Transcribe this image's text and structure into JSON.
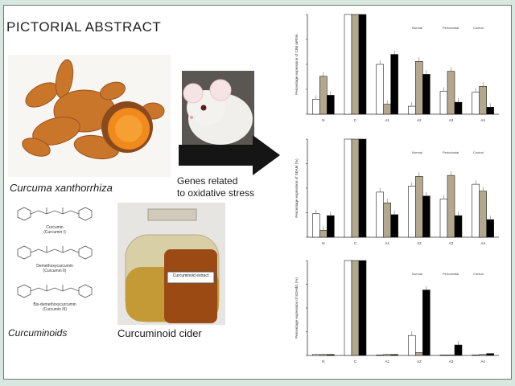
{
  "title": "PICTORIAL ABSTRACT",
  "captions": {
    "plant": "Curcuma xanthorrhiza",
    "genes_line1": "Genes related",
    "genes_line2": "to oxidative stress",
    "curcuminoids": "Curcuminoids",
    "cider": "Curcuminoid cider",
    "jar_label": "Curcuminoid extract"
  },
  "molecules": [
    {
      "name": "Curcumin",
      "sub": "(Curcumin I)"
    },
    {
      "name": "Demethoxycurcumin",
      "sub": "(Curcumin II)"
    },
    {
      "name": "Bis-demethoxycurcumin",
      "sub": "(Curcumin III)"
    }
  ],
  "colors": {
    "white_bar": "#ffffff",
    "tan_bar": "#b3a88c",
    "black_bar": "#000000"
  },
  "chart_data": [
    {
      "type": "bar",
      "ylabel": "Percentage expression of CB6 mRNA",
      "categories": [
        "N",
        "C",
        "A1",
        "A2",
        "A3",
        "A4"
      ],
      "legend": [
        "Normal",
        "Periodontal",
        "Control"
      ],
      "ylim": [
        0,
        100
      ],
      "series": [
        {
          "values": [
            15,
            100,
            50,
            8,
            23,
            22
          ]
        },
        {
          "values": [
            38,
            100,
            10,
            53,
            43,
            28
          ]
        },
        {
          "values": [
            19,
            100,
            60,
            40,
            12,
            7
          ]
        }
      ]
    },
    {
      "type": "bar",
      "ylabel": "Percentage expression of SEAM (%)",
      "categories": [
        "N",
        "C",
        "A1",
        "A2",
        "A3",
        "A4"
      ],
      "legend": [
        "Normal",
        "Periodontal",
        "Control"
      ],
      "ylim": [
        0,
        100
      ],
      "series": [
        {
          "values": [
            24,
            100,
            46,
            52,
            39,
            54
          ]
        },
        {
          "values": [
            7,
            100,
            35,
            62,
            63,
            47
          ]
        },
        {
          "values": [
            22,
            100,
            23,
            42,
            22,
            18
          ]
        }
      ]
    },
    {
      "type": "bar",
      "ylabel": "Percentage expression of 8OHdG (%)",
      "categories": [
        "N",
        "C",
        "A1",
        "A2",
        "A3",
        "A4"
      ],
      "legend": [
        "Normal",
        "Periodontal",
        "Control"
      ],
      "ylim": [
        0,
        100
      ],
      "series": [
        {
          "values": [
            1,
            100,
            0,
            21,
            0,
            0
          ]
        },
        {
          "values": [
            1,
            100,
            1,
            3,
            0,
            1
          ]
        },
        {
          "values": [
            1,
            100,
            1,
            69,
            11,
            2
          ]
        }
      ]
    }
  ]
}
